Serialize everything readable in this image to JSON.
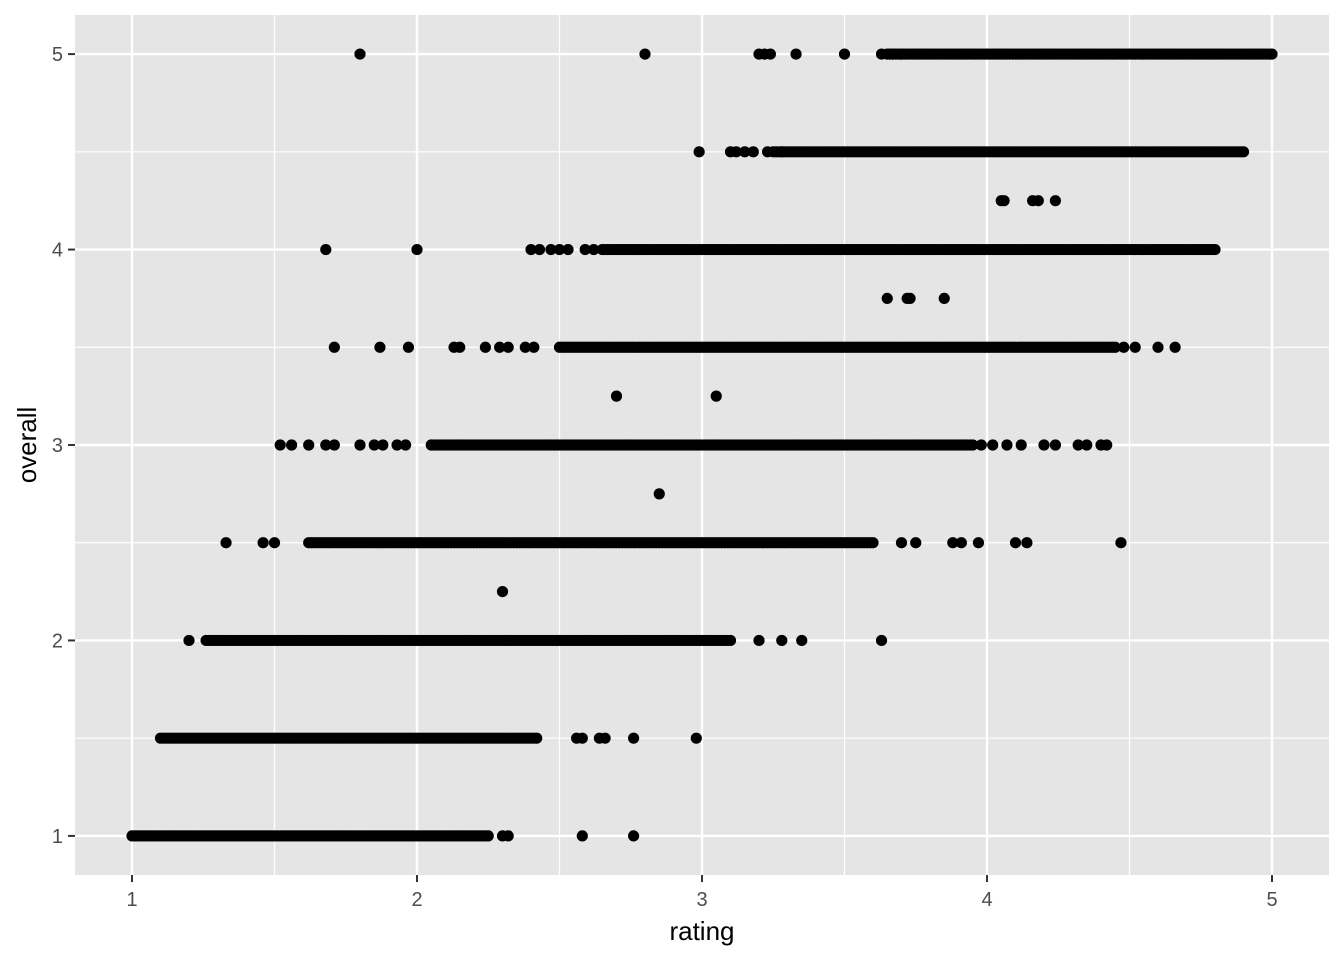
{
  "chart_data": {
    "type": "scatter",
    "xlabel": "rating",
    "ylabel": "overall",
    "xlim": [
      0.8,
      5.2
    ],
    "ylim": [
      0.8,
      5.2
    ],
    "x_ticks": [
      1,
      2,
      3,
      4,
      5
    ],
    "y_ticks": [
      1,
      2,
      3,
      4,
      5
    ],
    "x_tick_labels": [
      "1",
      "2",
      "3",
      "4",
      "5"
    ],
    "y_tick_labels": [
      "1",
      "2",
      "3",
      "4",
      "5"
    ],
    "grid": true,
    "panel_background": "#e5e5e5",
    "grid_color": "#ffffff",
    "point_color": "#000000",
    "rows": [
      {
        "y": 5,
        "x_range": [
          3.65,
          5.0
        ],
        "points": [
          1.8,
          2.8,
          3.2,
          3.22,
          3.24,
          3.33,
          3.5,
          3.63,
          3.67,
          3.7
        ]
      },
      {
        "y": 4.5,
        "x_range": [
          3.25,
          4.9
        ],
        "points": [
          2.99,
          3.1,
          3.12,
          3.15,
          3.18,
          3.23,
          3.28
        ]
      },
      {
        "y": 4.25,
        "x_range": null,
        "points": [
          4.05,
          4.06,
          4.16,
          4.18,
          4.24
        ]
      },
      {
        "y": 4,
        "x_range": [
          2.65,
          4.8
        ],
        "points": [
          1.68,
          2.0,
          2.4,
          2.43,
          2.47,
          2.5,
          2.53,
          2.59,
          2.62
        ]
      },
      {
        "y": 3.75,
        "x_range": null,
        "points": [
          3.65,
          3.72,
          3.73,
          3.85
        ]
      },
      {
        "y": 3.5,
        "x_range": [
          2.5,
          4.45
        ],
        "points": [
          1.71,
          1.87,
          1.97,
          2.13,
          2.15,
          2.24,
          2.29,
          2.32,
          2.38,
          2.41,
          4.48,
          4.52,
          4.6,
          4.66
        ]
      },
      {
        "y": 3.25,
        "x_range": null,
        "points": [
          2.7,
          3.05
        ]
      },
      {
        "y": 3,
        "x_range": [
          2.05,
          3.95
        ],
        "points": [
          1.52,
          1.56,
          1.62,
          1.68,
          1.71,
          1.8,
          1.85,
          1.88,
          1.93,
          1.96,
          3.98,
          4.02,
          4.07,
          4.12,
          4.2,
          4.24,
          4.32,
          4.35,
          4.4,
          4.42
        ]
      },
      {
        "y": 2.75,
        "x_range": null,
        "points": [
          2.85
        ]
      },
      {
        "y": 2.5,
        "x_range": [
          1.62,
          3.6
        ],
        "points": [
          1.33,
          1.46,
          1.5,
          3.7,
          3.75,
          3.88,
          3.91,
          3.97,
          4.1,
          4.14,
          4.47
        ]
      },
      {
        "y": 2.25,
        "x_range": null,
        "points": [
          2.3
        ]
      },
      {
        "y": 2,
        "x_range": [
          1.26,
          3.1
        ],
        "points": [
          1.2,
          3.2,
          3.28,
          3.35,
          3.63
        ]
      },
      {
        "y": 1.5,
        "x_range": [
          1.1,
          2.42
        ],
        "points": [
          2.56,
          2.58,
          2.64,
          2.66,
          2.76,
          2.98
        ]
      },
      {
        "y": 1.25,
        "x_range": null,
        "points": []
      },
      {
        "y": 1,
        "x_range": [
          1.0,
          2.25
        ],
        "points": [
          2.3,
          2.32,
          2.58,
          2.76
        ]
      }
    ]
  }
}
